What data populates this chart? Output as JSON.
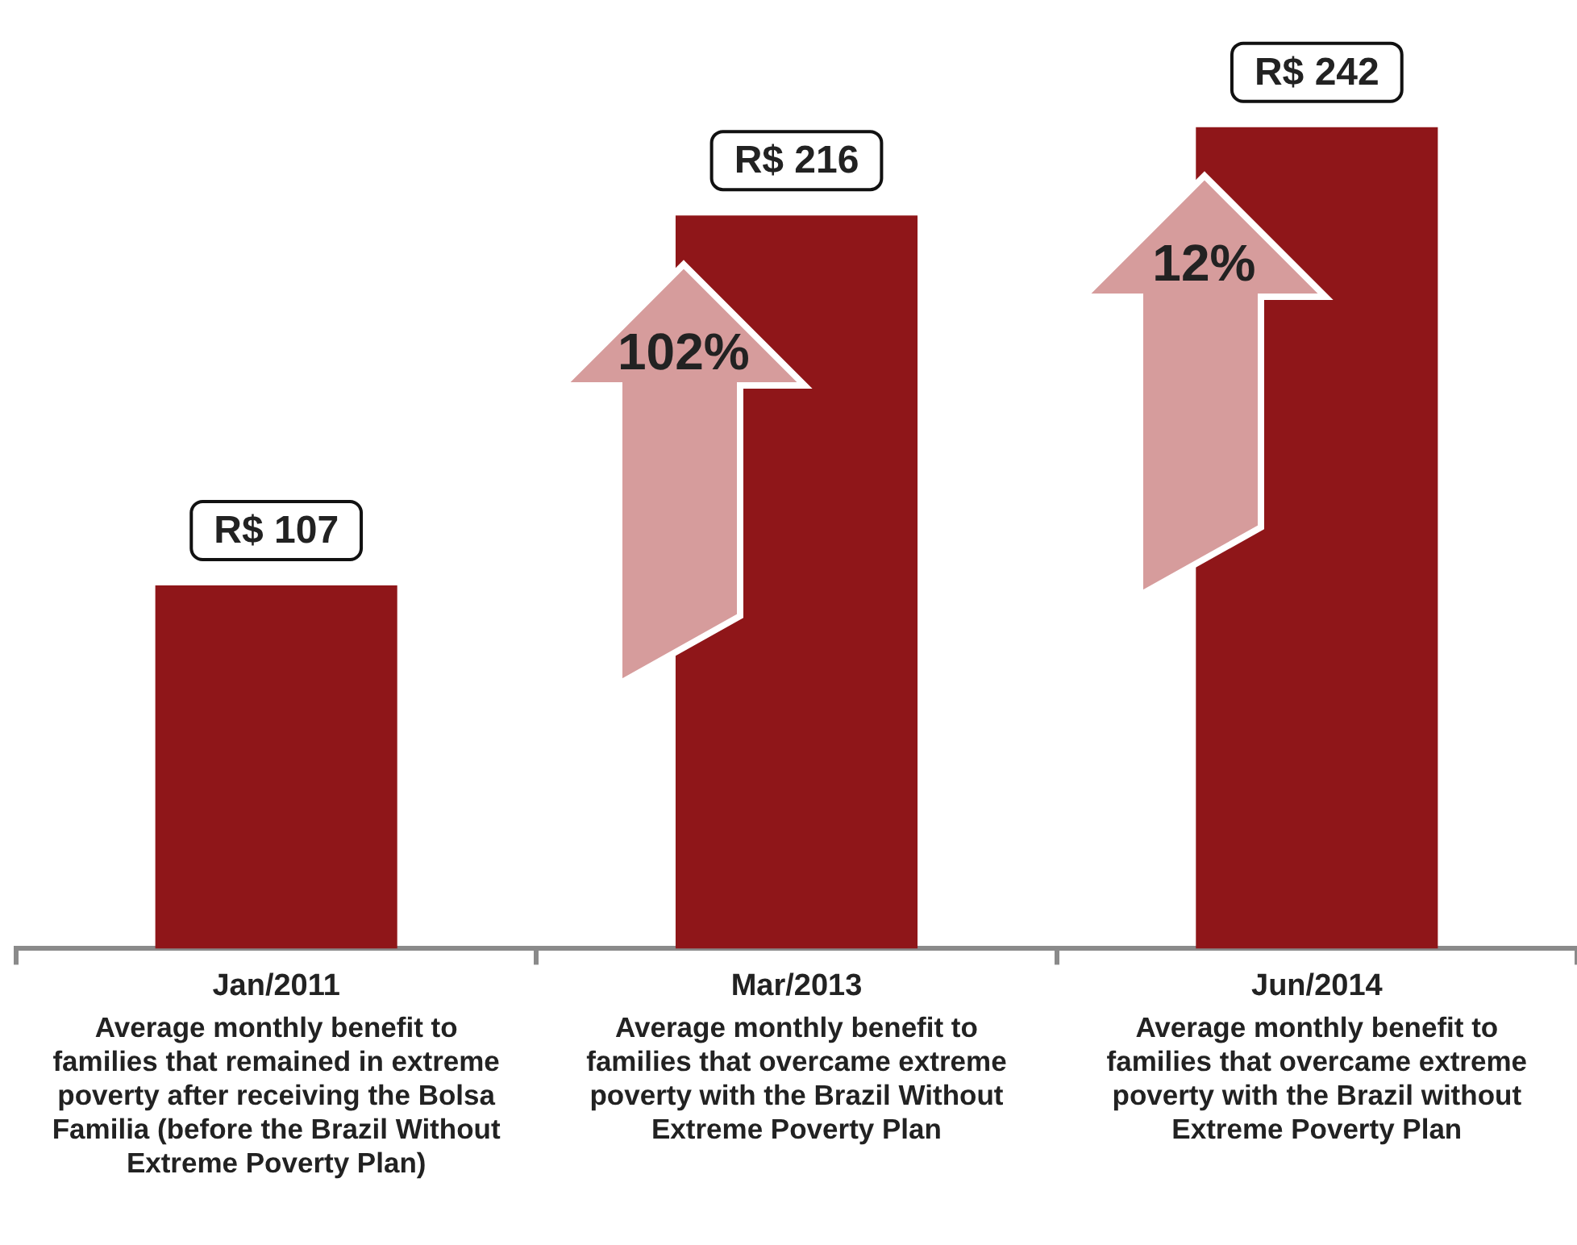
{
  "chart_data": {
    "type": "bar",
    "categories": [
      "Jan/2011",
      "Mar/2013",
      "Jun/2014"
    ],
    "values": [
      107,
      216,
      242
    ],
    "value_labels": [
      "R$ 107",
      "R$ 216",
      "R$ 242"
    ],
    "color": "#8f1619",
    "tick_labels": "x",
    "grid": false,
    "legend": false,
    "annotations": [
      "Average monthly benefit to families that remained in extreme poverty after receiving the Bolsa Familia (before the Brazil Without Extreme Poverty Plan)",
      "Average monthly benefit to families that overcame extreme poverty with the Brazil Without Extreme Poverty Plan",
      "Average monthly benefit to families that overcame extreme poverty with the Brazil without Extreme Poverty Plan",
      "102%",
      "12%"
    ]
  }
}
